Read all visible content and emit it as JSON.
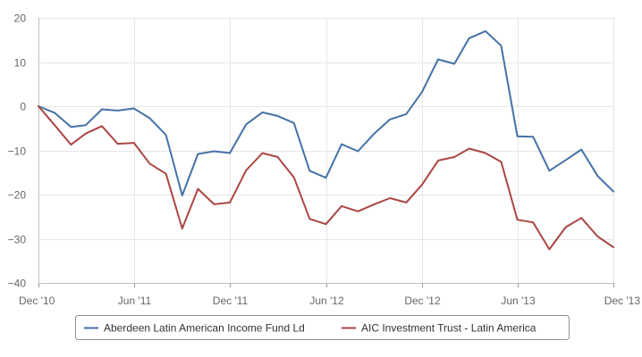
{
  "chart_data": {
    "type": "line",
    "title": "",
    "xlabel": "",
    "ylabel": "",
    "ylim": [
      -40,
      20
    ],
    "y_ticks": [
      20,
      10,
      0,
      -10,
      -20,
      -30,
      -40
    ],
    "y_tick_labels": [
      "20",
      "10",
      "0",
      "−10",
      "−20",
      "−30",
      "−40"
    ],
    "x_ticks": [
      "2010-12-01",
      "2011-06-01",
      "2011-12-01",
      "2012-06-01",
      "2012-12-01",
      "2013-06-01",
      "2013-12-01"
    ],
    "x_tick_labels": [
      "Dec '10",
      "Jun '11",
      "Dec '11",
      "Jun '12",
      "Dec '12",
      "Jun '13",
      "Dec '13"
    ],
    "grid": true,
    "legend_position": "bottom",
    "series": [
      {
        "name": "Aberdeen Latin American Income Fund Ld",
        "color": "#4572a7",
        "points": [
          [
            "2010-12-01",
            0
          ],
          [
            "2011-01-01",
            -1.5
          ],
          [
            "2011-02-01",
            -4.7
          ],
          [
            "2011-03-01",
            -4.3
          ],
          [
            "2011-04-01",
            -0.7
          ],
          [
            "2011-05-01",
            -1.0
          ],
          [
            "2011-06-01",
            -0.5
          ],
          [
            "2011-07-01",
            -2.7
          ],
          [
            "2011-08-01",
            -6.5
          ],
          [
            "2011-09-01",
            -20.2
          ],
          [
            "2011-10-01",
            -10.8
          ],
          [
            "2011-11-01",
            -10.2
          ],
          [
            "2011-12-01",
            -10.6
          ],
          [
            "2012-01-01",
            -4.1
          ],
          [
            "2012-02-01",
            -1.4
          ],
          [
            "2012-03-01",
            -2.2
          ],
          [
            "2012-04-01",
            -3.8
          ],
          [
            "2012-05-01",
            -14.6
          ],
          [
            "2012-06-01",
            -16.2
          ],
          [
            "2012-07-01",
            -8.6
          ],
          [
            "2012-08-01",
            -10.2
          ],
          [
            "2012-09-01",
            -6.2
          ],
          [
            "2012-10-01",
            -3.0
          ],
          [
            "2012-11-01",
            -1.8
          ],
          [
            "2012-12-01",
            3.2
          ],
          [
            "2013-01-01",
            10.6
          ],
          [
            "2013-02-01",
            9.6
          ],
          [
            "2013-03-01",
            15.4
          ],
          [
            "2013-04-01",
            17.0
          ],
          [
            "2013-05-01",
            13.7
          ],
          [
            "2013-06-01",
            -6.8
          ],
          [
            "2013-07-01",
            -6.9
          ],
          [
            "2013-08-01",
            -14.6
          ],
          [
            "2013-09-01",
            -12.2
          ],
          [
            "2013-10-01",
            -9.8
          ],
          [
            "2013-11-01",
            -15.8
          ],
          [
            "2013-12-01",
            -19.3
          ]
        ]
      },
      {
        "name": "AIC Investment Trust - Latin America",
        "color": "#aa4643",
        "points": [
          [
            "2010-12-01",
            0
          ],
          [
            "2011-01-01",
            -4.3
          ],
          [
            "2011-02-01",
            -8.7
          ],
          [
            "2011-03-01",
            -6.2
          ],
          [
            "2011-04-01",
            -4.5
          ],
          [
            "2011-05-01",
            -8.5
          ],
          [
            "2011-06-01",
            -8.3
          ],
          [
            "2011-07-01",
            -13.0
          ],
          [
            "2011-08-01",
            -15.3
          ],
          [
            "2011-09-01",
            -27.7
          ],
          [
            "2011-10-01",
            -18.7
          ],
          [
            "2011-11-01",
            -22.2
          ],
          [
            "2011-12-01",
            -21.8
          ],
          [
            "2012-01-01",
            -14.5
          ],
          [
            "2012-02-01",
            -10.6
          ],
          [
            "2012-03-01",
            -11.5
          ],
          [
            "2012-04-01",
            -16.1
          ],
          [
            "2012-05-01",
            -25.5
          ],
          [
            "2012-06-01",
            -26.7
          ],
          [
            "2012-07-01",
            -22.6
          ],
          [
            "2012-08-01",
            -23.8
          ],
          [
            "2012-09-01",
            -22.2
          ],
          [
            "2012-10-01",
            -20.8
          ],
          [
            "2012-11-01",
            -21.8
          ],
          [
            "2012-12-01",
            -17.8
          ],
          [
            "2013-01-01",
            -12.3
          ],
          [
            "2013-02-01",
            -11.5
          ],
          [
            "2013-03-01",
            -9.6
          ],
          [
            "2013-04-01",
            -10.6
          ],
          [
            "2013-05-01",
            -12.6
          ],
          [
            "2013-06-01",
            -25.7
          ],
          [
            "2013-07-01",
            -26.3
          ],
          [
            "2013-08-01",
            -32.4
          ],
          [
            "2013-09-01",
            -27.4
          ],
          [
            "2013-10-01",
            -25.3
          ],
          [
            "2013-11-01",
            -29.5
          ],
          [
            "2013-12-01",
            -31.9
          ]
        ]
      }
    ]
  }
}
